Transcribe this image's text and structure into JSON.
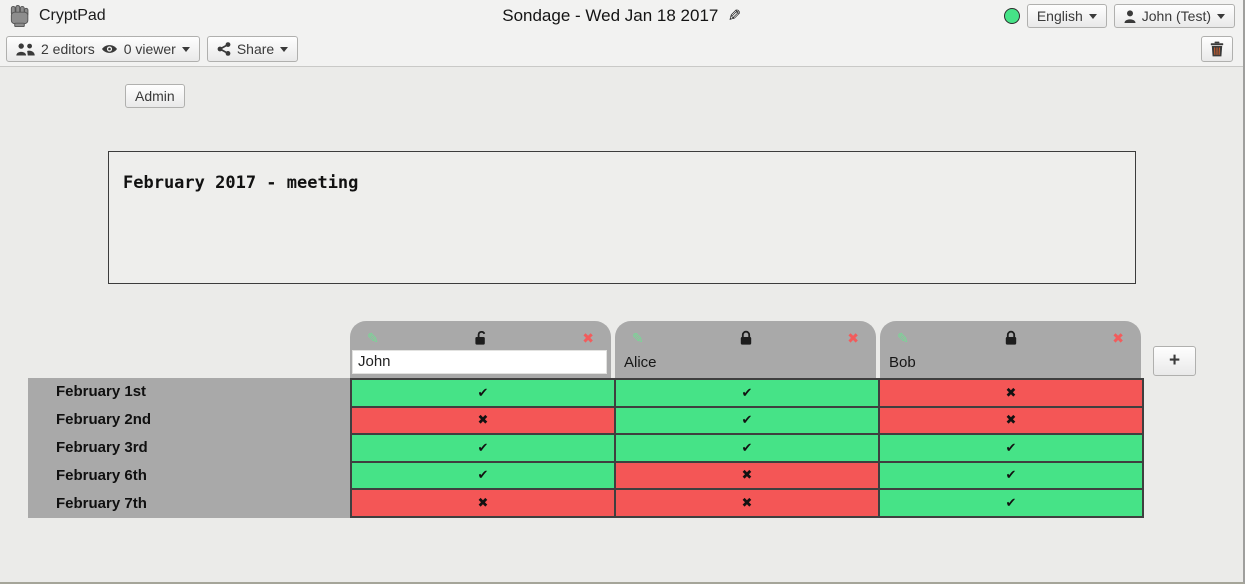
{
  "titlebar": {
    "app_name": "CryptPad",
    "logo_icon": "fist-icon",
    "doc_title": "Sondage - Wed Jan 18 2017",
    "edit_icon": "pencil-icon",
    "status_icon": "connection-status-dot",
    "status_color": "#46E387",
    "language_label": "English",
    "user_icon": "user-icon",
    "user_label": "John (Test)"
  },
  "toolbar": {
    "editors_icon": "users-icon",
    "editors_label": "2 editors",
    "viewers_icon": "eye-icon",
    "viewers_label": "0 viewer",
    "share_icon": "share-icon",
    "share_label": "Share",
    "trash_icon": "trash-icon"
  },
  "content": {
    "admin_label": "Admin",
    "description": "February 2017 - meeting"
  },
  "poll": {
    "add_column_label": "+",
    "header_icons": {
      "edit": "pencil-icon",
      "locked": "lock-icon",
      "unlocked": "unlock-icon",
      "remove": "x-icon"
    },
    "columns": [
      {
        "name": "John",
        "editable": true,
        "locked": false
      },
      {
        "name": "Alice",
        "editable": false,
        "locked": true
      },
      {
        "name": "Bob",
        "editable": false,
        "locked": true
      }
    ],
    "rows": [
      {
        "label": "February 1st",
        "votes": [
          "yes",
          "yes",
          "no"
        ]
      },
      {
        "label": "February 2nd",
        "votes": [
          "no",
          "yes",
          "no"
        ]
      },
      {
        "label": "February 3rd",
        "votes": [
          "yes",
          "yes",
          "yes"
        ]
      },
      {
        "label": "February 6th",
        "votes": [
          "yes",
          "no",
          "yes"
        ]
      },
      {
        "label": "February 7th",
        "votes": [
          "no",
          "no",
          "yes"
        ]
      }
    ],
    "glyphs": {
      "yes": "✔",
      "no": "✖"
    },
    "colors": {
      "yes": "#46E387",
      "no": "#F45656",
      "header_bg": "#A9A9A9"
    }
  }
}
